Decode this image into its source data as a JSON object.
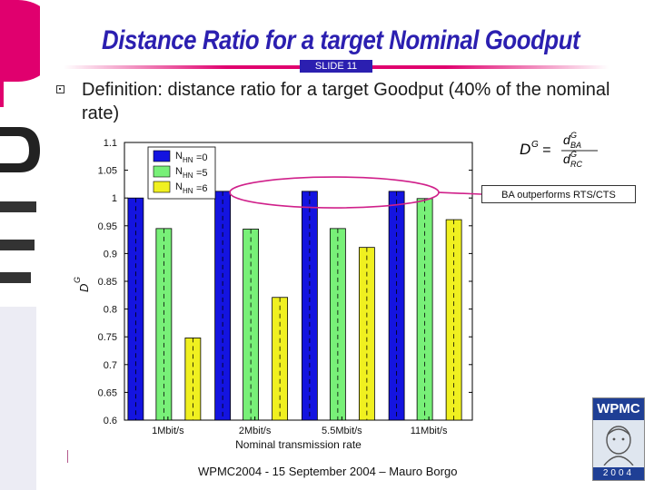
{
  "slide": {
    "title": "Distance Ratio for a target Nominal Goodput",
    "slide_label": "SLIDE 11",
    "definition": "Definition: distance ratio for a target Goodput (40% of the nominal rate)",
    "callout": "BA outperforms RTS/CTS",
    "footer": "WPMC2004 - 15 September 2004 – Mauro Borgo",
    "logo": {
      "top_text": "WPMC",
      "bottom_text": "2004"
    },
    "formula": {
      "lhs": "D",
      "lhs_sup": "G",
      "num": "d",
      "num_sup": "G",
      "num_sub": "BA",
      "den": "d",
      "den_sup": "G",
      "den_sub": "RC"
    }
  },
  "chart_data": {
    "type": "bar",
    "xlabel": "Nominal transmission rate",
    "ylabel": "D",
    "ylabel_sup": "G",
    "categories": [
      "1Mbit/s",
      "2Mbit/s",
      "5.5Mbit/s",
      "11Mbit/s"
    ],
    "ylim": [
      0.6,
      1.1
    ],
    "yticks": [
      "0.6",
      "0.65",
      "0.7",
      "0.75",
      "0.8",
      "0.85",
      "0.9",
      "0.95",
      "1",
      "1.05",
      "1.1"
    ],
    "series": [
      {
        "name": "N",
        "sub": "HN",
        "suffix": "=0",
        "color": "#1414e0",
        "values": [
          1.0,
          1.012,
          1.012,
          1.012
        ]
      },
      {
        "name": "N",
        "sub": "HN",
        "suffix": "=5",
        "color": "#78f078",
        "values": [
          0.945,
          0.944,
          0.945,
          0.999
        ]
      },
      {
        "name": "N",
        "sub": "HN",
        "suffix": "=6",
        "color": "#f0f020",
        "values": [
          0.748,
          0.821,
          0.911,
          0.961
        ]
      }
    ],
    "reference_value": 1.0,
    "legend": "top-left",
    "grid": false
  }
}
